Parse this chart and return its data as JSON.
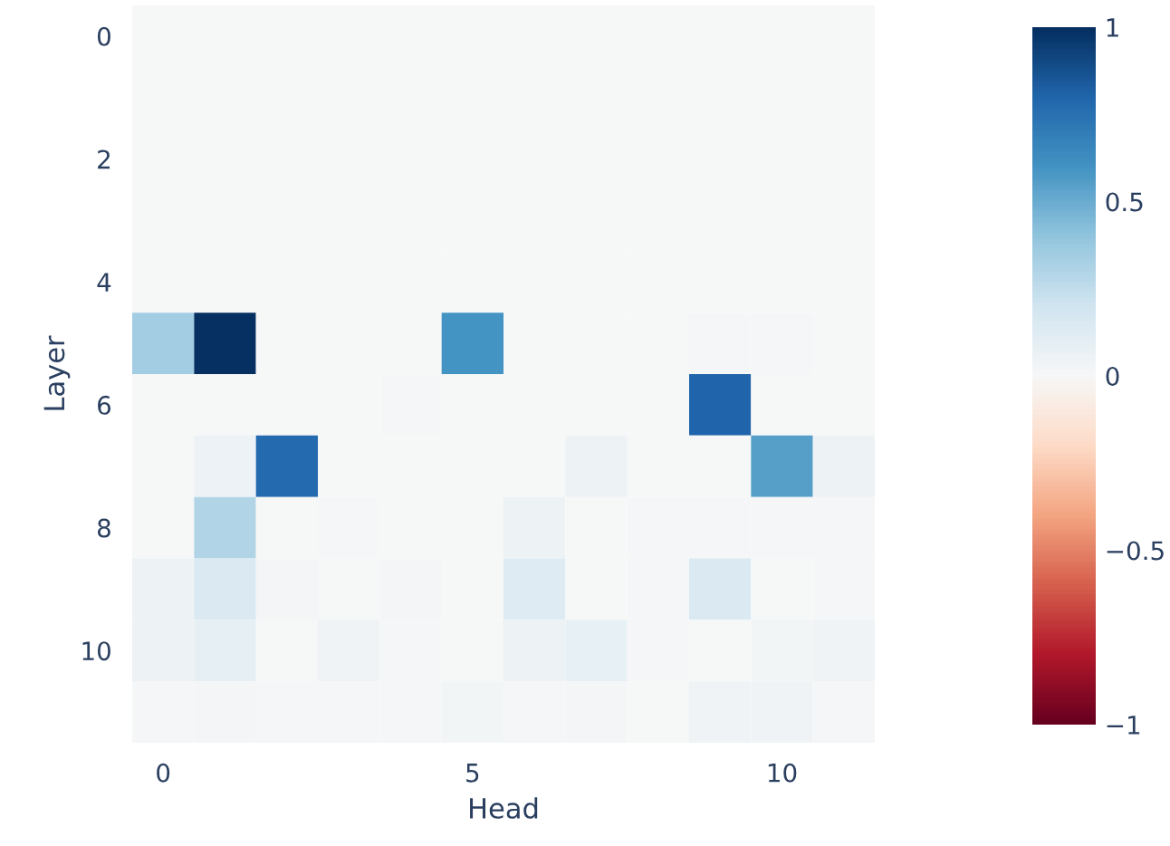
{
  "chart_data": {
    "type": "heatmap",
    "xlabel": "Head",
    "ylabel": "Layer",
    "categories": [
      "0",
      null,
      null,
      null,
      null,
      "5",
      null,
      null,
      null,
      null,
      "10",
      null
    ],
    "y_categories": [
      "0",
      null,
      "2",
      null,
      "4",
      null,
      "6",
      null,
      "8",
      null,
      "10",
      null
    ],
    "cells": [
      [
        0,
        0,
        0,
        0,
        0,
        0,
        0,
        0,
        0,
        0,
        0,
        0
      ],
      [
        0,
        0,
        0,
        0,
        0,
        0,
        0,
        0,
        0,
        0,
        0,
        0
      ],
      [
        0,
        0,
        0,
        0,
        0,
        0,
        0,
        0,
        0,
        0,
        0,
        0
      ],
      [
        0,
        0,
        0,
        0,
        0,
        0,
        0,
        0,
        0,
        0,
        0,
        0
      ],
      [
        0,
        0,
        0,
        0,
        0,
        0,
        0,
        0,
        0,
        0,
        0,
        0
      ],
      [
        0.35,
        1.0,
        0,
        0,
        0,
        0.6,
        0,
        0,
        0,
        0.01,
        0.01,
        0
      ],
      [
        0,
        0,
        0,
        0,
        0.01,
        0,
        0,
        0,
        0,
        0.8,
        0,
        0
      ],
      [
        0,
        0.06,
        0.78,
        0,
        0,
        0,
        0,
        0.05,
        0,
        0,
        0.55,
        0.05
      ],
      [
        0,
        0.3,
        0,
        0.01,
        0,
        0,
        0.05,
        0,
        0.01,
        0.01,
        0.01,
        0.01
      ],
      [
        0.05,
        0.15,
        0.02,
        0,
        0.02,
        0,
        0.13,
        0,
        0.01,
        0.15,
        0,
        0.01
      ],
      [
        0.05,
        0.09,
        0,
        0.04,
        0.01,
        0,
        0.05,
        0.08,
        0.01,
        0,
        0.03,
        0.04
      ],
      [
        0.01,
        0.02,
        0.01,
        0.01,
        0.01,
        0.03,
        0.01,
        0.02,
        0,
        0.04,
        0.04,
        0.01
      ]
    ],
    "clim": [
      -1,
      1
    ],
    "cticks": [
      {
        "value": -1,
        "label": "−1"
      },
      {
        "value": -0.5,
        "label": "−0.5"
      },
      0,
      0.5,
      1
    ]
  }
}
